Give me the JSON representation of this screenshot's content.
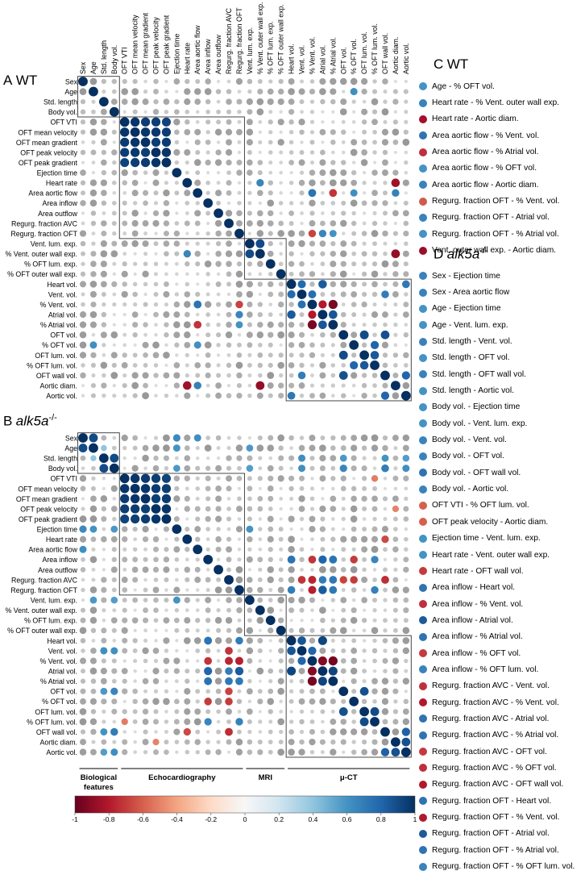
{
  "panels": {
    "A": {
      "letter": "A",
      "genotype": "WT",
      "superscript": ""
    },
    "B": {
      "letter": "B",
      "genotype": "alk5a",
      "superscript": "-/-"
    },
    "C": {
      "letter": "C",
      "genotype": "WT",
      "superscript": ""
    },
    "D": {
      "letter": "D",
      "genotype": "alk5a",
      "superscript": "-/-"
    }
  },
  "variables": [
    "Sex",
    "Age",
    "Std. length",
    "Body vol.",
    "OFT VTI",
    "OFT mean velocity",
    "OFT mean gradient",
    "OFT peak velocity",
    "OFT peak gradient",
    "Ejection time",
    "Heart rate",
    "Area aortic flow",
    "Area inflow",
    "Area outflow",
    "Regurg. fraction AVC",
    "Regurg. fraction OFT",
    "Vent. lum. exp.",
    "% Vent. outer wall exp.",
    "% OFT lum. exp.",
    "% OFT outer wall exp.",
    "Heart vol.",
    "Vent. vol.",
    "% Vent. vol.",
    "Atrial vol.",
    "% Atrial vol.",
    "OFT vol.",
    "% OFT vol.",
    "OFT lum. vol.",
    "% OFT lum. vol.",
    "OFT wall vol.",
    "Aortic diam.",
    "Aortic vol."
  ],
  "groups": [
    {
      "label": "Biological",
      "label2": "features",
      "start": 0,
      "end": 3
    },
    {
      "label": "Echocardiography",
      "label2": "",
      "start": 4,
      "end": 15
    },
    {
      "label": "MRI",
      "label2": "",
      "start": 16,
      "end": 19
    },
    {
      "label": "μ-CT",
      "label2": "",
      "start": 20,
      "end": 31
    }
  ],
  "colorbar": {
    "ticks": [
      "-1",
      "-0.8",
      "-0.6",
      "-0.4",
      "-0.2",
      "0",
      "0.2",
      "0.4",
      "0.6",
      "0.8",
      "1"
    ],
    "range": [
      -1,
      1
    ],
    "stops": [
      [
        -1.0,
        "#67001f"
      ],
      [
        -0.8,
        "#b2182b"
      ],
      [
        -0.6,
        "#d6604d"
      ],
      [
        -0.4,
        "#f4a582"
      ],
      [
        -0.2,
        "#fddbc7"
      ],
      [
        0.0,
        "#f7f7f7"
      ],
      [
        0.2,
        "#d1e5f0"
      ],
      [
        0.4,
        "#92c5de"
      ],
      [
        0.6,
        "#4393c3"
      ],
      [
        0.8,
        "#2166ac"
      ],
      [
        1.0,
        "#053061"
      ]
    ],
    "nonsignificant_color": "#bdbdbd"
  },
  "chart_data": [
    {
      "type": "heatmap",
      "panel": "A",
      "genotype": "WT",
      "shape": "circle correlogram",
      "value_range": [
        -1,
        1
      ],
      "clusters": [
        [
          0,
          3
        ],
        [
          4,
          15
        ],
        [
          16,
          19
        ],
        [
          20,
          31
        ]
      ],
      "significant": [
        {
          "row": "OFT VTI",
          "col": "OFT mean velocity",
          "r": 0.98
        },
        {
          "row": "OFT VTI",
          "col": "OFT mean gradient",
          "r": 0.96
        },
        {
          "row": "OFT VTI",
          "col": "OFT peak velocity",
          "r": 0.95
        },
        {
          "row": "OFT VTI",
          "col": "OFT peak gradient",
          "r": 0.93
        },
        {
          "row": "OFT mean velocity",
          "col": "OFT mean gradient",
          "r": 0.98
        },
        {
          "row": "OFT mean velocity",
          "col": "OFT peak velocity",
          "r": 0.97
        },
        {
          "row": "OFT mean velocity",
          "col": "OFT peak gradient",
          "r": 0.95
        },
        {
          "row": "OFT mean gradient",
          "col": "OFT peak velocity",
          "r": 0.95
        },
        {
          "row": "OFT mean gradient",
          "col": "OFT peak gradient",
          "r": 0.96
        },
        {
          "row": "OFT peak velocity",
          "col": "OFT peak gradient",
          "r": 0.98
        },
        {
          "row": "Age",
          "col": "% OFT vol.",
          "r": 0.62
        },
        {
          "row": "Heart rate",
          "col": "% Vent. outer wall exp.",
          "r": 0.66
        },
        {
          "row": "Heart rate",
          "col": "Aortic diam.",
          "r": -0.85
        },
        {
          "row": "Area aortic flow",
          "col": "% Vent. vol.",
          "r": 0.74
        },
        {
          "row": "Area aortic flow",
          "col": "% Atrial vol.",
          "r": -0.72
        },
        {
          "row": "Area aortic flow",
          "col": "% OFT vol.",
          "r": 0.62
        },
        {
          "row": "Area aortic flow",
          "col": "Aortic diam.",
          "r": 0.68
        },
        {
          "row": "Regurg. fraction OFT",
          "col": "% Vent. vol.",
          "r": -0.68
        },
        {
          "row": "Regurg. fraction OFT",
          "col": "Atrial vol.",
          "r": 0.66
        },
        {
          "row": "Regurg. fraction OFT",
          "col": "% Atrial vol.",
          "r": 0.6
        },
        {
          "row": "% Vent. outer wall exp.",
          "col": "Aortic diam.",
          "r": -0.88
        },
        {
          "row": "Vent. lum. exp.",
          "col": "% Vent. outer wall exp.",
          "r": 0.9
        },
        {
          "row": "Heart vol.",
          "col": "Vent. vol.",
          "r": 0.78
        },
        {
          "row": "Heart vol.",
          "col": "Atrial vol.",
          "r": 0.84
        },
        {
          "row": "Heart vol.",
          "col": "Aortic vol.",
          "r": 0.72
        },
        {
          "row": "Vent. vol.",
          "col": "% Vent. vol.",
          "r": 0.76
        },
        {
          "row": "Vent. vol.",
          "col": "OFT wall vol.",
          "r": 0.7
        },
        {
          "row": "% Vent. vol.",
          "col": "Atrial vol.",
          "r": -0.8
        },
        {
          "row": "% Vent. vol.",
          "col": "% Atrial vol.",
          "r": -0.95
        },
        {
          "row": "Atrial vol.",
          "col": "% Atrial vol.",
          "r": 0.86
        },
        {
          "row": "OFT vol.",
          "col": "OFT lum. vol.",
          "r": 0.9
        },
        {
          "row": "OFT vol.",
          "col": "OFT wall vol.",
          "r": 0.88
        },
        {
          "row": "OFT lum. vol.",
          "col": "% OFT lum. vol.",
          "r": 0.85
        },
        {
          "row": "% OFT vol.",
          "col": "% OFT lum. vol.",
          "r": 0.8
        },
        {
          "row": "OFT wall vol.",
          "col": "Aortic vol.",
          "r": 0.8
        }
      ]
    },
    {
      "type": "heatmap",
      "panel": "B",
      "genotype": "alk5a-/-",
      "shape": "circle correlogram",
      "value_range": [
        -1,
        1
      ],
      "clusters": [
        [
          0,
          3
        ],
        [
          4,
          15
        ],
        [
          16,
          19
        ],
        [
          20,
          31
        ]
      ],
      "significant": [
        {
          "row": "Sex",
          "col": "Age",
          "r": 0.9
        },
        {
          "row": "Std. length",
          "col": "Body vol.",
          "r": 0.9
        },
        {
          "row": "Age",
          "col": "Std. length",
          "r": 0.4
        },
        {
          "row": "OFT VTI",
          "col": "OFT mean velocity",
          "r": 0.98
        },
        {
          "row": "OFT VTI",
          "col": "OFT mean gradient",
          "r": 0.96
        },
        {
          "row": "OFT VTI",
          "col": "OFT peak velocity",
          "r": 0.95
        },
        {
          "row": "OFT VTI",
          "col": "OFT peak gradient",
          "r": 0.93
        },
        {
          "row": "OFT mean velocity",
          "col": "OFT mean gradient",
          "r": 0.98
        },
        {
          "row": "OFT mean velocity",
          "col": "OFT peak velocity",
          "r": 0.96
        },
        {
          "row": "OFT mean velocity",
          "col": "OFT peak gradient",
          "r": 0.95
        },
        {
          "row": "OFT mean gradient",
          "col": "OFT peak velocity",
          "r": 0.95
        },
        {
          "row": "OFT mean gradient",
          "col": "OFT peak gradient",
          "r": 0.96
        },
        {
          "row": "OFT peak velocity",
          "col": "OFT peak gradient",
          "r": 0.98
        },
        {
          "row": "Sex",
          "col": "Ejection time",
          "r": 0.64
        },
        {
          "row": "Sex",
          "col": "Area aortic flow",
          "r": 0.62
        },
        {
          "row": "Age",
          "col": "Ejection time",
          "r": 0.6
        },
        {
          "row": "Age",
          "col": "Vent. lum. exp.",
          "r": 0.58
        },
        {
          "row": "Std. length",
          "col": "Vent. vol.",
          "r": 0.62
        },
        {
          "row": "Std. length",
          "col": "OFT vol.",
          "r": 0.58
        },
        {
          "row": "Std. length",
          "col": "OFT wall vol.",
          "r": 0.6
        },
        {
          "row": "Std. length",
          "col": "Aortic vol.",
          "r": 0.56
        },
        {
          "row": "Body vol.",
          "col": "Ejection time",
          "r": 0.58
        },
        {
          "row": "Body vol.",
          "col": "Vent. lum. exp.",
          "r": 0.56
        },
        {
          "row": "Body vol.",
          "col": "Vent. vol.",
          "r": 0.62
        },
        {
          "row": "Body vol.",
          "col": "OFT vol.",
          "r": 0.66
        },
        {
          "row": "Body vol.",
          "col": "OFT wall vol.",
          "r": 0.7
        },
        {
          "row": "Body vol.",
          "col": "Aortic vol.",
          "r": 0.62
        },
        {
          "row": "OFT VTI",
          "col": "% OFT lum. vol.",
          "r": -0.52
        },
        {
          "row": "OFT peak velocity",
          "col": "Aortic diam.",
          "r": -0.5
        },
        {
          "row": "Ejection time",
          "col": "Vent. lum. exp.",
          "r": 0.6
        },
        {
          "row": "Heart rate",
          "col": "Vent. outer wall exp.",
          "r": 0.6
        },
        {
          "row": "Heart rate",
          "col": "OFT wall vol.",
          "r": -0.66
        },
        {
          "row": "Area inflow",
          "col": "Heart vol.",
          "r": 0.74
        },
        {
          "row": "Area inflow",
          "col": "% Vent. vol.",
          "r": -0.72
        },
        {
          "row": "Area inflow",
          "col": "Atrial vol.",
          "r": 0.8
        },
        {
          "row": "Area inflow",
          "col": "% Atrial vol.",
          "r": 0.74
        },
        {
          "row": "Area inflow",
          "col": "% OFT vol.",
          "r": -0.7
        },
        {
          "row": "Area inflow",
          "col": "% OFT lum. vol.",
          "r": 0.66
        },
        {
          "row": "Regurg. fraction AVC",
          "col": "Vent. vol.",
          "r": -0.72
        },
        {
          "row": "Regurg. fraction AVC",
          "col": "% Vent. vol.",
          "r": -0.76
        },
        {
          "row": "Regurg. fraction AVC",
          "col": "Atrial vol.",
          "r": 0.7
        },
        {
          "row": "Regurg. fraction AVC",
          "col": "% Atrial vol.",
          "r": 0.72
        },
        {
          "row": "Regurg. fraction AVC",
          "col": "OFT vol.",
          "r": -0.68
        },
        {
          "row": "Regurg. fraction AVC",
          "col": "% OFT vol.",
          "r": -0.7
        },
        {
          "row": "Regurg. fraction AVC",
          "col": "OFT wall vol.",
          "r": -0.74
        },
        {
          "row": "Regurg. fraction OFT",
          "col": "Heart vol.",
          "r": 0.7
        },
        {
          "row": "Regurg. fraction OFT",
          "col": "% Vent. vol.",
          "r": -0.78
        },
        {
          "row": "Regurg. fraction OFT",
          "col": "Atrial vol.",
          "r": 0.84
        },
        {
          "row": "Regurg. fraction OFT",
          "col": "% Atrial vol.",
          "r": 0.72
        },
        {
          "row": "Regurg. fraction OFT",
          "col": "% OFT lum. vol.",
          "r": 0.68
        },
        {
          "row": "Heart vol.",
          "col": "Vent. vol.",
          "r": 0.86
        },
        {
          "row": "Heart vol.",
          "col": "Atrial vol.",
          "r": 0.92
        },
        {
          "row": "Vent. vol.",
          "col": "% Vent. vol.",
          "r": 0.8
        },
        {
          "row": "% Vent. vol.",
          "col": "Atrial vol.",
          "r": -0.92
        },
        {
          "row": "% Vent. vol.",
          "col": "% Atrial vol.",
          "r": -0.96
        },
        {
          "row": "Atrial vol.",
          "col": "% Atrial vol.",
          "r": 0.92
        },
        {
          "row": "OFT vol.",
          "col": "OFT lum. vol.",
          "r": 0.88
        },
        {
          "row": "OFT lum. vol.",
          "col": "% OFT lum. vol.",
          "r": 0.9
        },
        {
          "row": "OFT wall vol.",
          "col": "Aortic vol.",
          "r": 0.82
        },
        {
          "row": "Aortic diam.",
          "col": "Aortic vol.",
          "r": 0.88
        }
      ]
    }
  ],
  "legend_C": [
    {
      "text": "Age - % OFT vol.",
      "color": "#4393c3"
    },
    {
      "text": "Heart rate - % Vent. outer wall exp.",
      "color": "#3a82bc"
    },
    {
      "text": "Heart rate - Aortic diam.",
      "color": "#a50f2d"
    },
    {
      "text": "Area aortic flow - % Vent. vol.",
      "color": "#2f73b0"
    },
    {
      "text": "Area aortic flow - % Atrial vol.",
      "color": "#bf2f3d"
    },
    {
      "text": "Area aortic flow - % OFT vol.",
      "color": "#4393c3"
    },
    {
      "text": "Area aortic flow - Aortic diam.",
      "color": "#3a82bc"
    },
    {
      "text": "Regurg. fraction OFT - % Vent. vol.",
      "color": "#d05a4c"
    },
    {
      "text": "Regurg. fraction OFT - Atrial vol.",
      "color": "#3a82bc"
    },
    {
      "text": "Regurg. fraction OFT - % Atrial vol.",
      "color": "#4393c3"
    },
    {
      "text": "Vent. outer wall exp. - Aortic diam.",
      "color": "#9c0c2b"
    }
  ],
  "legend_D": [
    {
      "text": "Sex - Ejection time",
      "color": "#3a82bc"
    },
    {
      "text": "Sex - Area aortic flow",
      "color": "#3a82bc"
    },
    {
      "text": "Age - Ejection time",
      "color": "#4393c3"
    },
    {
      "text": "Age - Vent. lum. exp.",
      "color": "#4393c3"
    },
    {
      "text": "Std. length - Vent. vol.",
      "color": "#3a82bc"
    },
    {
      "text": "Std. length - OFT vol.",
      "color": "#4393c3"
    },
    {
      "text": "Std. length - OFT wall vol.",
      "color": "#3a82bc"
    },
    {
      "text": "Std. length - Aortic vol.",
      "color": "#4393c3"
    },
    {
      "text": "Body vol. - Ejection time",
      "color": "#4393c3"
    },
    {
      "text": "Body vol. - Vent. lum. exp.",
      "color": "#4393c3"
    },
    {
      "text": "Body vol. - Vent. vol.",
      "color": "#3a82bc"
    },
    {
      "text": "Body vol. - OFT vol.",
      "color": "#3a82bc"
    },
    {
      "text": "Body vol. - OFT wall vol.",
      "color": "#2f73b0"
    },
    {
      "text": "Body vol. - Aortic vol.",
      "color": "#3a82bc"
    },
    {
      "text": "OFT VTI - % OFT lum. vol.",
      "color": "#d6604d"
    },
    {
      "text": "OFT peak velocity - Aortic diam.",
      "color": "#d6604d"
    },
    {
      "text": "Ejection time - Vent. lum. exp.",
      "color": "#4393c3"
    },
    {
      "text": "Heart rate - Vent. outer wall exp.",
      "color": "#4393c3"
    },
    {
      "text": "Heart rate - OFT wall vol.",
      "color": "#c53a3f"
    },
    {
      "text": "Area inflow - Heart vol.",
      "color": "#2f73b0"
    },
    {
      "text": "Area inflow - % Vent. vol.",
      "color": "#bf2f3d"
    },
    {
      "text": "Area inflow - Atrial vol.",
      "color": "#1d5a99"
    },
    {
      "text": "Area inflow - % Atrial vol.",
      "color": "#2f73b0"
    },
    {
      "text": "Area inflow - % OFT vol.",
      "color": "#c53a3f"
    },
    {
      "text": "Area inflow - % OFT lum. vol.",
      "color": "#3a82bc"
    },
    {
      "text": "Regurg. fraction AVC - Vent. vol.",
      "color": "#bf2f3d"
    },
    {
      "text": "Regurg. fraction AVC - % Vent. vol.",
      "color": "#b2182b"
    },
    {
      "text": "Regurg. fraction AVC - Atrial vol.",
      "color": "#2f73b0"
    },
    {
      "text": "Regurg. fraction AVC - % Atrial vol.",
      "color": "#2f73b0"
    },
    {
      "text": "Regurg. fraction AVC - OFT vol.",
      "color": "#c53a3f"
    },
    {
      "text": "Regurg. fraction AVC - % OFT vol.",
      "color": "#bf2f3d"
    },
    {
      "text": "Regurg. fraction AVC - OFT wall vol.",
      "color": "#b2182b"
    },
    {
      "text": "Regurg. fraction OFT - Heart vol.",
      "color": "#2f73b0"
    },
    {
      "text": "Regurg. fraction OFT - % Vent. vol.",
      "color": "#b2182b"
    },
    {
      "text": "Regurg. fraction OFT - Atrial vol.",
      "color": "#1d5a99"
    },
    {
      "text": "Regurg. fraction OFT - % Atrial vol.",
      "color": "#2f73b0"
    },
    {
      "text": "Regurg. fraction OFT - % OFT lum. vol.",
      "color": "#3a82bc"
    }
  ]
}
